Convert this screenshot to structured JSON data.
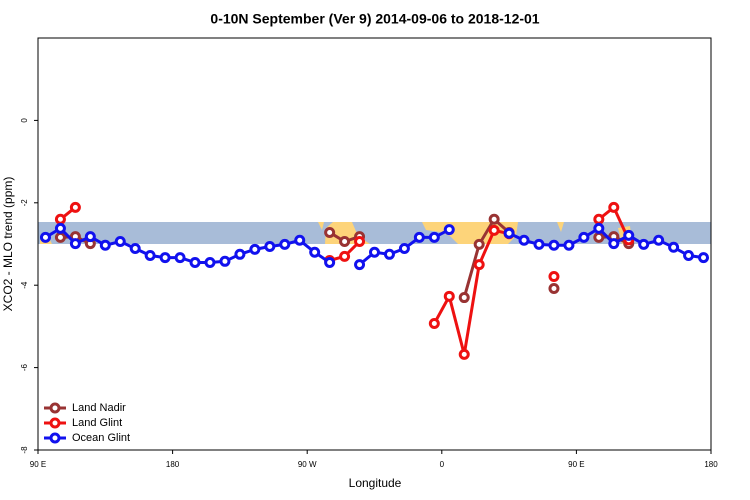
{
  "chart_data": {
    "type": "line",
    "title": "0-10N September (Ver 9)   2014-09-06 to 2018-12-01",
    "x_label": "Longitude",
    "y_label": "XCO2 - MLO trend (ppm)",
    "xlim": [
      90,
      540
    ],
    "ylim": [
      -8,
      2
    ],
    "xticks": [
      {
        "value": 90,
        "label": "90 E"
      },
      180,
      {
        "value": 270,
        "label": "90 W"
      },
      {
        "value": 360,
        "label": "0"
      },
      {
        "value": 450,
        "label": "90 E"
      },
      {
        "value": 540,
        "label": "180"
      }
    ],
    "yticks": [
      0,
      -2,
      -4,
      -6,
      -8
    ],
    "legend": "bottom-left",
    "series": [
      {
        "name": "Land Nadir",
        "color": "#993333",
        "x": [
          105,
          115,
          125,
          205,
          285,
          295,
          305,
          345,
          375,
          385,
          395,
          405,
          420,
          435,
          450,
          465,
          475,
          485
        ],
        "values": [
          -2.84,
          -2.82,
          -2.99,
          null,
          -2.72,
          -2.94,
          -2.82,
          null,
          -4.3,
          -3.01,
          -2.4,
          -2.72,
          null,
          -4.08,
          null,
          -2.84,
          -2.82,
          -2.99
        ]
      },
      {
        "name": "Land Glint",
        "color": "#ee1111",
        "x": [
          105,
          115,
          205,
          285,
          295,
          305,
          345,
          355,
          365,
          375,
          385,
          395,
          405,
          420,
          435,
          450,
          465,
          475,
          485
        ],
        "values": [
          -2.4,
          -2.11,
          null,
          -3.4,
          -3.3,
          -2.94,
          null,
          -4.93,
          -4.27,
          -5.68,
          -3.5,
          -2.67,
          -2.75,
          null,
          -3.79,
          null,
          -2.4,
          -2.11,
          -2.9
        ]
      },
      {
        "name": "Ocean Glint",
        "color": "#1111ee",
        "x": [
          95,
          105,
          115,
          125,
          135,
          145,
          155,
          165,
          175,
          185,
          195,
          205,
          215,
          225,
          235,
          245,
          255,
          265,
          275,
          285,
          295,
          305,
          315,
          325,
          335,
          345,
          355,
          365,
          385,
          405,
          415,
          425,
          435,
          445,
          455,
          465,
          475,
          485,
          495,
          505,
          515,
          525,
          535
        ],
        "values": [
          -2.84,
          -2.62,
          -2.99,
          -2.82,
          -3.03,
          -2.94,
          -3.11,
          -3.28,
          -3.33,
          -3.33,
          -3.45,
          -3.45,
          -3.42,
          -3.25,
          -3.13,
          -3.06,
          -3.01,
          -2.91,
          -3.2,
          -3.45,
          null,
          -3.5,
          -3.2,
          -3.25,
          -3.11,
          -2.84,
          -2.84,
          -2.65,
          null,
          -2.74,
          -2.91,
          -3.01,
          -3.03,
          -3.03,
          -2.84,
          -2.62,
          -2.99,
          -2.79,
          -3.01,
          -2.91,
          -3.08,
          -3.28,
          -3.33
        ]
      }
    ]
  }
}
